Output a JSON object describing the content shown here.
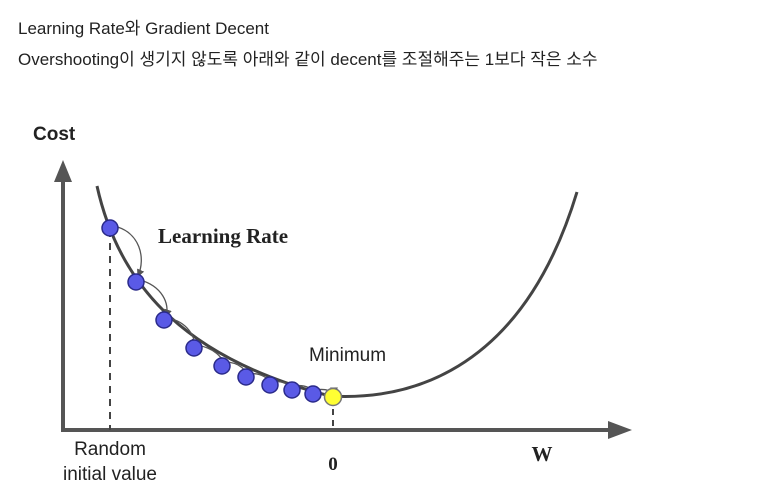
{
  "post": {
    "title": "Learning Rate와 Gradient Decent",
    "description": "Overshooting이 생기지 않도록 아래와 같이 decent를 조절해주는 1보다 작은 소수"
  },
  "diagram": {
    "y_axis_label": "Cost",
    "x_axis_label": "W",
    "learning_rate_label": "Learning Rate",
    "minimum_label": "Minimum",
    "start_label_line1": "Random",
    "start_label_line2": "initial value",
    "zero_label": "0",
    "colors": {
      "curve": "#444444",
      "step_point": "#5a5ae6",
      "minimum_point": "#ffff33",
      "axis": "#555555"
    },
    "step_count": 9
  }
}
